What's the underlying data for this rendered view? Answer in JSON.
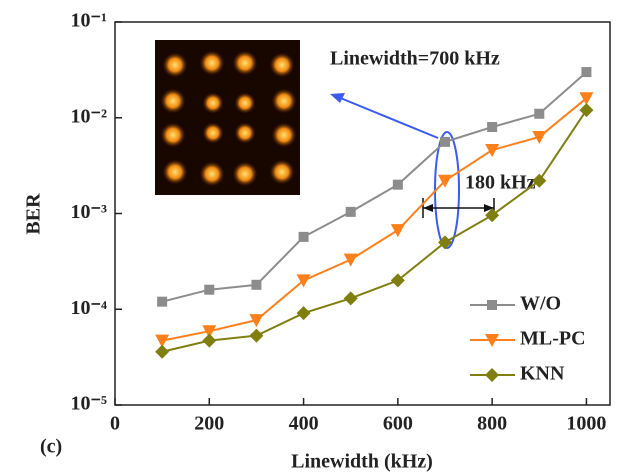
{
  "chart_data": {
    "type": "line",
    "x_label": "Linewidth (kHz)",
    "y_label": "BER",
    "annotations": [
      "Linewidth=700 kHz",
      "180 kHz",
      "(c)"
    ],
    "x": [
      100,
      200,
      300,
      400,
      500,
      600,
      700,
      800,
      900,
      1000
    ],
    "series": [
      {
        "name": "W/O",
        "color": "#8c8c8c",
        "marker": "square",
        "values": [
          0.00012,
          0.00016,
          0.00018,
          0.00057,
          0.00104,
          0.002,
          0.0056,
          0.008,
          0.011,
          0.03
        ]
      },
      {
        "name": "ML-PC",
        "color": "#ff7f1a",
        "marker": "triangle-down",
        "values": [
          4.7e-05,
          5.9e-05,
          7.7e-05,
          0.0002,
          0.00033,
          0.00067,
          0.0022,
          0.0046,
          0.0063,
          0.016
        ]
      },
      {
        "name": "KNN",
        "color": "#7f7f10",
        "marker": "diamond",
        "values": [
          3.6e-05,
          4.7e-05,
          5.3e-05,
          9.1e-05,
          0.00013,
          0.0002,
          0.0005,
          0.00096,
          0.0022,
          0.012
        ]
      }
    ],
    "xlim": [
      0,
      1050
    ],
    "xticks": [
      0,
      200,
      400,
      600,
      800,
      1000
    ],
    "ylim": [
      1e-05,
      0.1
    ],
    "log_y": true,
    "yticks": [
      {
        "value": 1e-05,
        "label": "10⁻⁵"
      },
      {
        "value": 0.0001,
        "label": "10⁻⁴"
      },
      {
        "value": 0.001,
        "label": "10⁻³"
      },
      {
        "value": 0.01,
        "label": "10⁻²"
      },
      {
        "value": 0.1,
        "label": "10⁻¹"
      }
    ],
    "legend": "lower right"
  }
}
